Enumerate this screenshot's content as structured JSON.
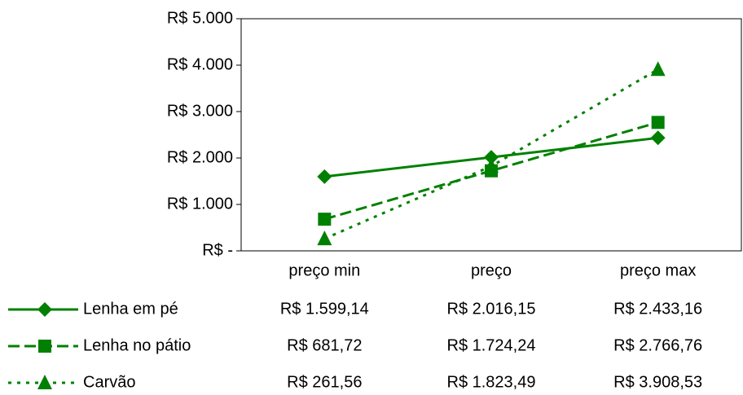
{
  "chart_data": {
    "type": "line",
    "categories": [
      "preço min",
      "preço",
      "preço max"
    ],
    "series": [
      {
        "name": "Lenha em pé",
        "color": "#008000",
        "dash": "solid",
        "marker": "diamond",
        "values": [
          1599.14,
          2016.15,
          2433.16
        ],
        "value_labels": [
          "R$ 1.599,14",
          "R$ 2.016,15",
          "R$ 2.433,16"
        ]
      },
      {
        "name": "Lenha no pátio",
        "color": "#008000",
        "dash": "dashed",
        "marker": "square",
        "values": [
          681.72,
          1724.24,
          2766.76
        ],
        "value_labels": [
          "R$ 681,72",
          "R$ 1.724,24",
          "R$ 2.766,76"
        ]
      },
      {
        "name": "Carvão",
        "color": "#008000",
        "dash": "dotted",
        "marker": "triangle",
        "values": [
          261.56,
          1823.49,
          3908.53
        ],
        "value_labels": [
          "R$ 261,56",
          "R$ 1.823,49",
          "R$ 3.908,53"
        ]
      }
    ],
    "ylim": [
      0,
      5000
    ],
    "yticks": [
      {
        "value": 0,
        "label": "R$ -"
      },
      {
        "value": 1000,
        "label": "R$ 1.000"
      },
      {
        "value": 2000,
        "label": "R$ 2.000"
      },
      {
        "value": 3000,
        "label": "R$ 3.000"
      },
      {
        "value": 4000,
        "label": "R$ 4.000"
      },
      {
        "value": 5000,
        "label": "R$ 5.000"
      }
    ],
    "grid": false,
    "data_table": true
  }
}
